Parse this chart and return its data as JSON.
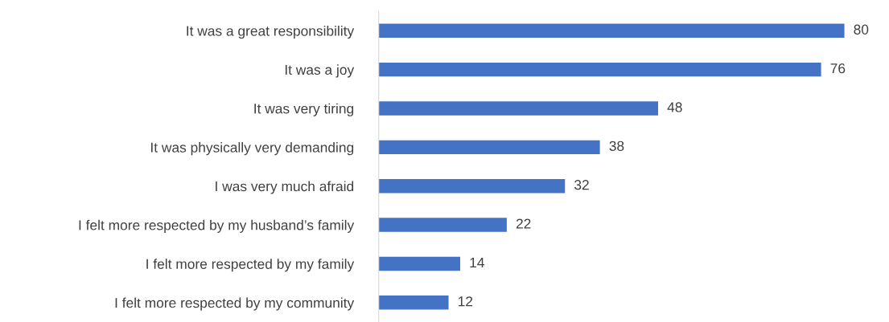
{
  "chart_data": {
    "type": "bar",
    "orientation": "horizontal",
    "data_labels": true,
    "color": "#4472c4",
    "categories": [
      "It was a great responsibility",
      "It was a joy",
      "It was very tiring",
      "It was physically very demanding",
      "I was very much afraid",
      "I felt more respected by my husband’s family",
      "I felt more respected by my family",
      "I felt more respected by my community"
    ],
    "values": [
      80,
      76,
      48,
      38,
      32,
      22,
      14,
      12
    ]
  }
}
